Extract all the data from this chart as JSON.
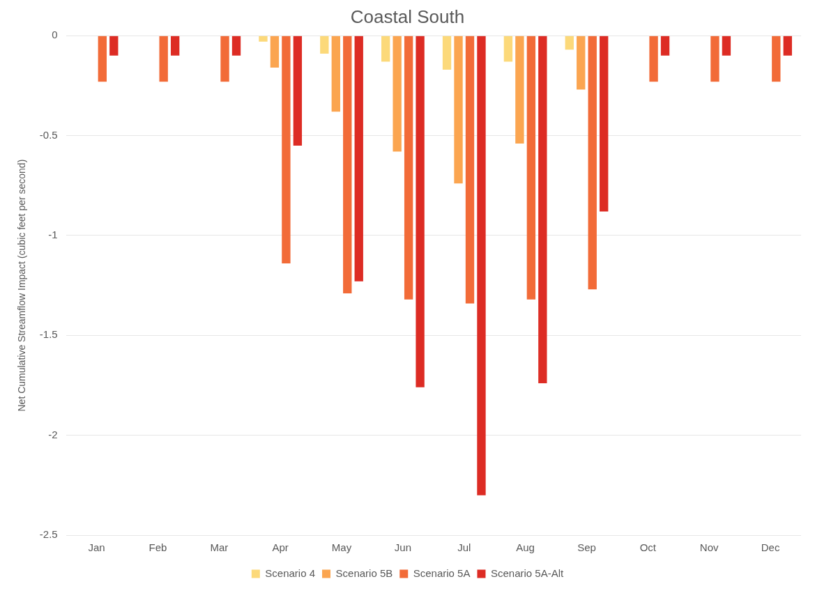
{
  "chart_data": {
    "type": "bar",
    "title": "Coastal South",
    "ylabel": "Net Cumulative Streamflow Impact (cubic feet per second)",
    "categories": [
      "Jan",
      "Feb",
      "Mar",
      "Apr",
      "May",
      "Jun",
      "Jul",
      "Aug",
      "Sep",
      "Oct",
      "Nov",
      "Dec"
    ],
    "series": [
      {
        "name": "Scenario 4",
        "color": "#fcd97a",
        "values": [
          0,
          0,
          0,
          -0.03,
          -0.09,
          -0.13,
          -0.17,
          -0.13,
          -0.07,
          0,
          0,
          0
        ]
      },
      {
        "name": "Scenario 5B",
        "color": "#fba550",
        "values": [
          0,
          0,
          0,
          -0.16,
          -0.38,
          -0.58,
          -0.74,
          -0.54,
          -0.27,
          0,
          0,
          0
        ]
      },
      {
        "name": "Scenario 5A",
        "color": "#f26b38",
        "values": [
          -0.23,
          -0.23,
          -0.23,
          -1.14,
          -1.29,
          -1.32,
          -1.34,
          -1.32,
          -1.27,
          -0.23,
          -0.23,
          -0.23
        ]
      },
      {
        "name": "Scenario 5A-Alt",
        "color": "#dd2c24",
        "values": [
          -0.1,
          -0.1,
          -0.1,
          -0.55,
          -1.23,
          -1.76,
          -2.3,
          -1.74,
          -0.88,
          -0.1,
          -0.1,
          -0.1
        ]
      }
    ],
    "ylim": [
      -2.5,
      0
    ],
    "yticks": [
      -2.5,
      -2,
      -1.5,
      -1,
      -0.5,
      0
    ],
    "grid": "y",
    "legend": "bottom"
  }
}
